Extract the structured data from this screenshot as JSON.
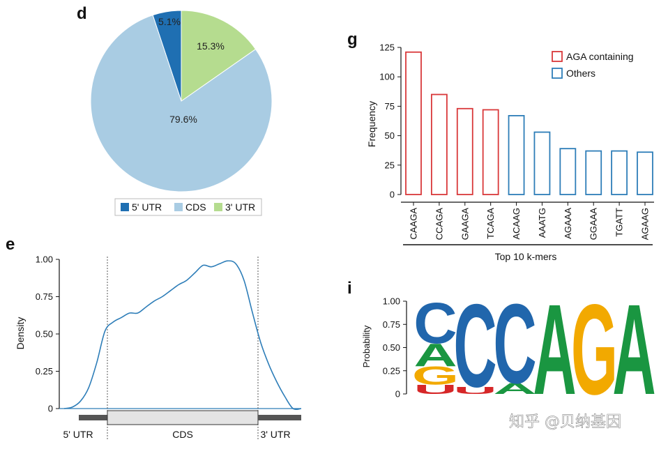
{
  "panels": {
    "d": "d",
    "e": "e",
    "g": "g",
    "i": "i"
  },
  "watermark": "知乎 @贝纳基因",
  "chart_data": [
    {
      "id": "d",
      "type": "pie",
      "slices": [
        {
          "name": "5' UTR",
          "value": 5.1,
          "label": "5.1%",
          "color": "#1f6fb2"
        },
        {
          "name": "3' UTR",
          "value": 15.3,
          "label": "15.3%",
          "color": "#b5dc8f"
        },
        {
          "name": "CDS",
          "value": 79.6,
          "label": "79.6%",
          "color": "#a9cce3"
        }
      ],
      "legend": [
        "5' UTR",
        "CDS",
        "3' UTR"
      ],
      "legend_position": "bottom"
    },
    {
      "id": "g",
      "type": "bar",
      "title": "",
      "xlabel": "Top 10 k-mers",
      "ylabel": "Frequency",
      "ylim": [
        0,
        125
      ],
      "yticks": [
        0,
        25,
        50,
        75,
        100,
        125
      ],
      "categories": [
        "CAAGA",
        "CCAGA",
        "GAAGA",
        "TCAGA",
        "ACAAG",
        "AAATG",
        "AGAAA",
        "GGAAA",
        "TGATT",
        "AGAAG"
      ],
      "values": [
        121,
        85,
        73,
        72,
        67,
        53,
        39,
        37,
        37,
        36
      ],
      "groups": [
        "AGA containing",
        "AGA containing",
        "AGA containing",
        "AGA containing",
        "Others",
        "Others",
        "Others",
        "Others",
        "Others",
        "Others"
      ],
      "legend": [
        {
          "name": "AGA containing",
          "color": "#d9383a"
        },
        {
          "name": "Others",
          "color": "#2d7db8"
        }
      ],
      "legend_position": "top-right"
    },
    {
      "id": "e",
      "type": "line",
      "xlabel": "",
      "ylabel": "Density",
      "ylim": [
        0,
        1.0
      ],
      "yticks": [
        "0",
        "0.25",
        "0.50",
        "0.75",
        "1.00"
      ],
      "regions": [
        "5' UTR",
        "CDS",
        "3' UTR"
      ],
      "x": [
        0,
        0.05,
        0.1,
        0.15,
        0.2,
        0.25,
        0.3,
        0.35,
        0.4,
        0.45,
        0.5,
        0.55,
        0.6,
        0.65,
        0.7,
        0.75,
        0.8,
        0.85,
        0.9,
        0.95,
        1.0,
        1.05,
        1.1,
        1.15,
        1.2,
        1.25,
        1.3,
        1.35,
        1.4,
        1.45
      ],
      "y": [
        0.0,
        0.01,
        0.05,
        0.14,
        0.31,
        0.52,
        0.58,
        0.61,
        0.64,
        0.64,
        0.68,
        0.72,
        0.75,
        0.79,
        0.83,
        0.86,
        0.91,
        0.96,
        0.95,
        0.97,
        0.99,
        0.97,
        0.86,
        0.65,
        0.45,
        0.3,
        0.18,
        0.08,
        0.0,
        0.0
      ]
    },
    {
      "id": "i",
      "type": "sequence_logo",
      "ylabel": "Probability",
      "ylim": [
        0,
        1.0
      ],
      "yticks": [
        "0",
        "0.25",
        "0.50",
        "0.75",
        "1.00"
      ],
      "positions": [
        [
          {
            "letter": "U",
            "p": 0.1,
            "color": "#d62728"
          },
          {
            "letter": "G",
            "p": 0.2,
            "color": "#f2a900"
          },
          {
            "letter": "A",
            "p": 0.25,
            "color": "#1a9641"
          },
          {
            "letter": "C",
            "p": 0.45,
            "color": "#2166ac"
          }
        ],
        [
          {
            "letter": "U",
            "p": 0.08,
            "color": "#d62728"
          },
          {
            "letter": "C",
            "p": 0.92,
            "color": "#2166ac"
          }
        ],
        [
          {
            "letter": "A",
            "p": 0.12,
            "color": "#1a9641"
          },
          {
            "letter": "C",
            "p": 0.88,
            "color": "#2166ac"
          }
        ],
        [
          {
            "letter": "A",
            "p": 1.0,
            "color": "#1a9641"
          }
        ],
        [
          {
            "letter": "G",
            "p": 1.0,
            "color": "#f2a900"
          }
        ],
        [
          {
            "letter": "A",
            "p": 1.0,
            "color": "#1a9641"
          }
        ]
      ]
    }
  ]
}
